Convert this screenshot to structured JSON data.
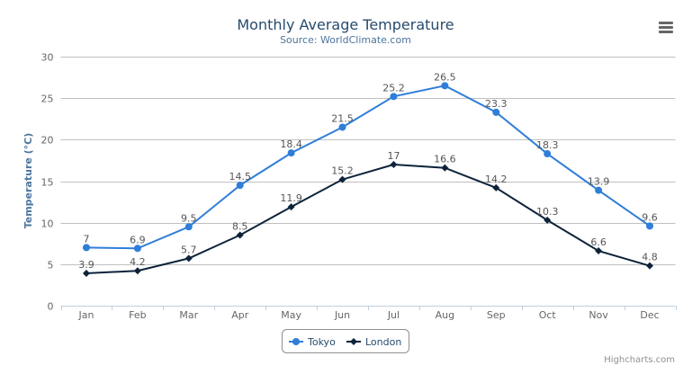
{
  "chart_data": {
    "type": "line",
    "title": "Monthly Average Temperature",
    "subtitle": "Source: WorldClimate.com",
    "xlabel": "",
    "ylabel": "Temperature (°C)",
    "ylim": [
      0,
      30
    ],
    "yticks": [
      "0",
      "5",
      "10",
      "15",
      "20",
      "25",
      "30"
    ],
    "categories": [
      "Jan",
      "Feb",
      "Mar",
      "Apr",
      "May",
      "Jun",
      "Jul",
      "Aug",
      "Sep",
      "Oct",
      "Nov",
      "Dec"
    ],
    "grid": true,
    "legend_position": "bottom-center",
    "data_labels": true,
    "series": [
      {
        "name": "Tokyo",
        "color": "#2f7ed8",
        "marker": "circle",
        "values": [
          7.0,
          6.9,
          9.5,
          14.5,
          18.4,
          21.5,
          25.2,
          26.5,
          23.3,
          18.3,
          13.9,
          9.6
        ]
      },
      {
        "name": "London",
        "color": "#0d233a",
        "marker": "diamond",
        "values": [
          3.9,
          4.2,
          5.7,
          8.5,
          11.9,
          15.2,
          17.0,
          16.6,
          14.2,
          10.3,
          6.6,
          4.8
        ]
      }
    ]
  },
  "credits": "Highcharts.com",
  "menu_icon": "hamburger-menu-icon"
}
